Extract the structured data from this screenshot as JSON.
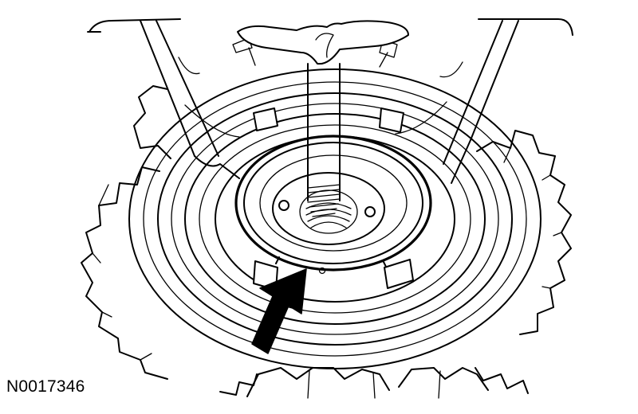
{
  "figure": {
    "id_label": "N0017346",
    "line_color": "#000000",
    "background_color": "#ffffff"
  }
}
